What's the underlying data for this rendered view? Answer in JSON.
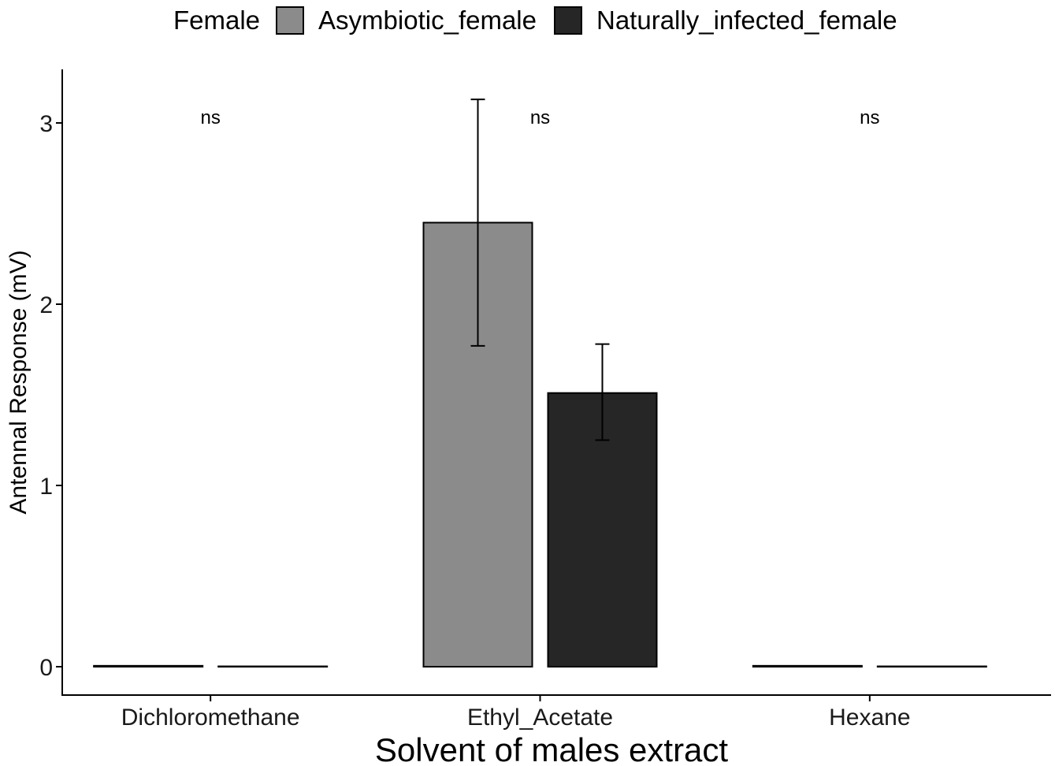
{
  "legend": {
    "title": "Female",
    "items": [
      {
        "label": "Asymbiotic_female",
        "color": "#8c8b8b"
      },
      {
        "label": "Naturally_infected_female",
        "color": "#262626"
      }
    ]
  },
  "chart_data": {
    "type": "bar",
    "xlabel": "Solvent of males extract",
    "ylabel": "Antennal Response (mV)",
    "categories": [
      "Dichloromethane",
      "Ethyl_Acetate",
      "Hexane"
    ],
    "ylim": [
      -0.15,
      3.3
    ],
    "yticks": [
      0,
      1,
      2,
      3
    ],
    "series": [
      {
        "name": "Asymbiotic_female",
        "color": "#8c8b8b",
        "values": [
          0.005,
          2.45,
          0.005
        ],
        "err_low": [
          0.005,
          1.77,
          0.005
        ],
        "err_high": [
          0.005,
          3.13,
          0.005
        ]
      },
      {
        "name": "Naturally_infected_female",
        "color": "#262626",
        "values": [
          0.002,
          1.51,
          0.002
        ],
        "err_low": [
          0.002,
          1.25,
          0.002
        ],
        "err_high": [
          0.002,
          1.78,
          0.002
        ]
      }
    ],
    "annotations": [
      "ns",
      "ns",
      "ns"
    ],
    "annotation_y": 3.03,
    "grid": false,
    "legend_position": "top"
  }
}
